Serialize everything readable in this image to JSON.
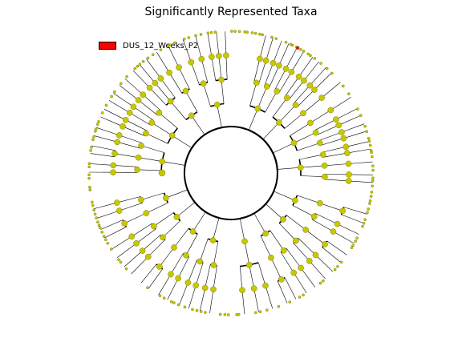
{
  "title": "Significantly Represented Taxa",
  "legend": [
    {
      "label": "DUS_12_Weeks_P2",
      "color": "#ff0000"
    }
  ],
  "colors": {
    "node_fill": "#c8c800",
    "node_stroke": "#6b6b00",
    "line": "#000000",
    "background": "#ffffff"
  }
}
